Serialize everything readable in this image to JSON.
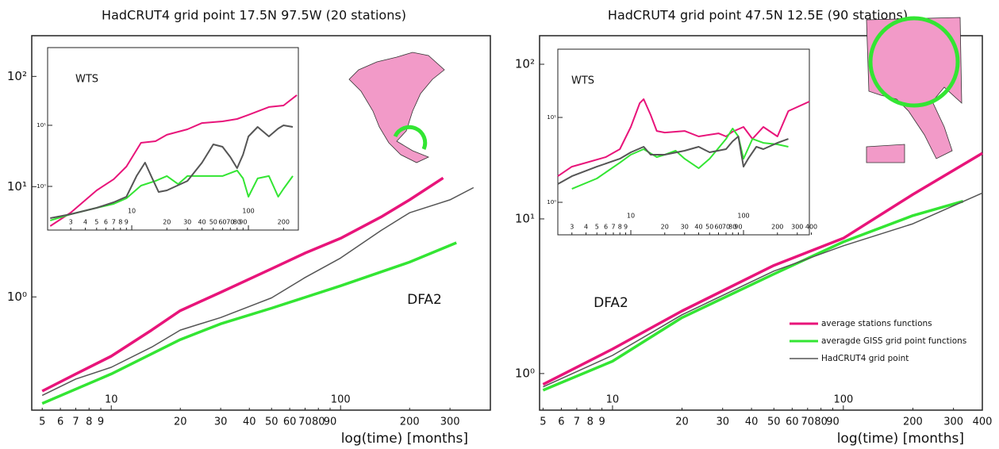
{
  "chart_data": [
    {
      "type": "line",
      "title": "HadCRUT4 grid point 17.5N 97.5W (20 stations)",
      "xlabel": "log(time) [months]",
      "annotation": "DFA2",
      "xscale": "log",
      "yscale": "log",
      "xlim": [
        4.5,
        450
      ],
      "ylim": [
        0.094,
        234
      ],
      "xticks": [
        5,
        6,
        7,
        8,
        9,
        10,
        20,
        30,
        40,
        50,
        60,
        70,
        80,
        90,
        100,
        200,
        300
      ],
      "yticks": [
        {
          "value": 1,
          "label": "10⁰"
        },
        {
          "value": 10,
          "label": "10¹"
        },
        {
          "value": 100,
          "label": "10²"
        }
      ],
      "legend": false,
      "series": [
        {
          "color": "#e8147a",
          "x": [
            5,
            7,
            10,
            15,
            20,
            30,
            50,
            70,
            100,
            150,
            200,
            280
          ],
          "values": [
            0.14,
            0.2,
            0.29,
            0.5,
            0.75,
            1.1,
            1.8,
            2.5,
            3.4,
            5.3,
            7.6,
            12
          ]
        },
        {
          "color": "#33e533",
          "x": [
            5,
            10,
            20,
            30,
            50,
            100,
            200,
            320
          ],
          "values": [
            0.108,
            0.2,
            0.41,
            0.57,
            0.79,
            1.26,
            2.07,
            3.1
          ]
        },
        {
          "color": "#555555",
          "x": [
            5,
            7,
            10,
            15,
            20,
            30,
            50,
            70,
            100,
            150,
            200,
            300,
            380
          ],
          "values": [
            0.128,
            0.18,
            0.23,
            0.35,
            0.5,
            0.65,
            0.98,
            1.5,
            2.25,
            4.0,
            5.8,
            7.6,
            9.8
          ]
        }
      ],
      "inset": {
        "label": "WTS",
        "xlim": [
          1.9,
          268
        ],
        "ylim": [
          0.193,
          187
        ],
        "xticks": [
          3,
          4,
          5,
          6,
          7,
          8,
          9,
          10,
          20,
          30,
          40,
          50,
          60,
          70,
          80,
          90,
          100,
          200
        ],
        "yticks": [
          {
            "value": 1,
            "label": "10⁰"
          },
          {
            "value": 10,
            "label": "10¹"
          }
        ],
        "series": [
          {
            "color": "#e8147a",
            "x": [
              2,
              3,
              5,
              7,
              9,
              12,
              16,
              20,
              30,
              40,
              60,
              80,
              100,
              150,
              200,
              260
            ],
            "values": [
              0.224,
              0.373,
              0.86,
              1.31,
              2.11,
              5.18,
              5.5,
              7.0,
              8.6,
              10.9,
              11.6,
              12.7,
              14.8,
              19.9,
              21.1,
              31.2
            ]
          },
          {
            "color": "#33e533",
            "x": [
              2,
              3,
              5,
              7,
              9,
              12,
              16,
              20,
              25,
              30,
              40,
              60,
              80,
              90,
              100,
              120,
              150,
              180,
              200,
              240
            ],
            "values": [
              0.277,
              0.351,
              0.446,
              0.518,
              0.638,
              1.03,
              1.23,
              1.48,
              1.09,
              1.48,
              1.48,
              1.48,
              1.82,
              1.35,
              0.678,
              1.35,
              1.48,
              0.678,
              0.914,
              1.48
            ]
          },
          {
            "color": "#555555",
            "x": [
              2,
              3,
              5,
              7,
              9,
              11,
              13,
              15,
              17,
              20,
              30,
              40,
              50,
              60,
              70,
              80,
              90,
              100,
              120,
              150,
              180,
              200,
              240
            ],
            "values": [
              0.302,
              0.351,
              0.446,
              0.55,
              0.678,
              1.48,
              2.45,
              1.35,
              0.811,
              0.861,
              1.23,
              2.45,
              4.88,
              4.46,
              3.02,
              1.99,
              3.31,
              6.58,
              9.42,
              6.58,
              8.87,
              10.0,
              9.42
            ]
          }
        ]
      }
    },
    {
      "type": "line",
      "title": "HadCRUT4 grid point 47.5N 12.5E (90 stations)",
      "xlabel": "log(time) [months]",
      "annotation": "DFA2",
      "xscale": "log",
      "yscale": "log",
      "xlim": [
        4.83,
        400
      ],
      "ylim": [
        0.58,
        153
      ],
      "xticks": [
        5,
        6,
        7,
        8,
        9,
        10,
        20,
        30,
        40,
        50,
        60,
        70,
        80,
        90,
        100,
        200,
        300,
        400
      ],
      "yticks": [
        {
          "value": 1,
          "label": "10⁰"
        },
        {
          "value": 10,
          "label": "10¹"
        },
        {
          "value": 100,
          "label": "10²"
        }
      ],
      "legend": "lower right",
      "series": [
        {
          "name": "average stations functions",
          "color": "#e8147a",
          "x": [
            5,
            10,
            20,
            50,
            100,
            200,
            400
          ],
          "values": [
            0.85,
            1.44,
            2.54,
            5.0,
            7.5,
            14.4,
            26.6
          ]
        },
        {
          "name": "averagde GISS grid point functions",
          "color": "#33e533",
          "x": [
            5,
            10,
            20,
            50,
            100,
            200,
            330
          ],
          "values": [
            0.78,
            1.2,
            2.3,
            4.4,
            7.1,
            10.5,
            13
          ]
        },
        {
          "name": "HadCRUT4 grid point",
          "color": "#555555",
          "x": [
            5,
            10,
            20,
            50,
            100,
            200,
            400
          ],
          "values": [
            0.82,
            1.31,
            2.4,
            4.6,
            6.7,
            9.3,
            14.7
          ]
        }
      ],
      "inset": {
        "label": "WTS",
        "xlim": [
          2.25,
          384
        ],
        "ylim": [
          0.414,
          63.7
        ],
        "xticks": [
          3,
          4,
          5,
          6,
          7,
          8,
          9,
          10,
          20,
          30,
          40,
          50,
          60,
          70,
          80,
          90,
          100,
          200,
          300,
          400
        ],
        "yticks": [
          {
            "value": 1,
            "label": "10⁰"
          },
          {
            "value": 10,
            "label": "10¹"
          }
        ],
        "series": [
          {
            "color": "#e8147a",
            "x": [
              2.25,
              3,
              4,
              6,
              8,
              10,
              12,
              13,
              15,
              17,
              20,
              30,
              40,
              60,
              70,
              80,
              100,
              120,
              150,
              200,
              250,
              384
            ],
            "values": [
              2.03,
              2.63,
              2.93,
              3.41,
              4.23,
              7.73,
              14.7,
              16.4,
              10.7,
              6.93,
              6.64,
              6.93,
              5.97,
              6.5,
              5.97,
              6.79,
              7.73,
              5.59,
              7.73,
              5.97,
              11.9,
              15.4
            ]
          },
          {
            "color": "#33e533",
            "x": [
              3,
              5,
              8,
              10,
              13,
              17,
              20,
              25,
              30,
              40,
              50,
              70,
              80,
              90,
              100,
              120,
              150,
              200,
              250
            ],
            "values": [
              1.44,
              1.91,
              2.93,
              3.64,
              4.23,
              3.41,
              3.64,
              4.05,
              3.26,
              2.52,
              3.26,
              5.59,
              7.4,
              5.97,
              3.26,
              5.59,
              5.02,
              4.81,
              4.51
            ]
          },
          {
            "color": "#555555",
            "x": [
              2.25,
              3,
              5,
              8,
              10,
              13,
              15,
              20,
              30,
              40,
              50,
              70,
              80,
              90,
              100,
              110,
              130,
              150,
              200,
              250
            ],
            "values": [
              1.64,
              2.03,
              2.63,
              3.26,
              3.88,
              4.51,
              3.64,
              3.64,
              4.05,
              4.51,
              3.88,
              4.23,
              5.24,
              5.97,
              2.63,
              3.26,
              4.51,
              4.23,
              5.02,
              5.59
            ]
          }
        ]
      }
    }
  ]
}
